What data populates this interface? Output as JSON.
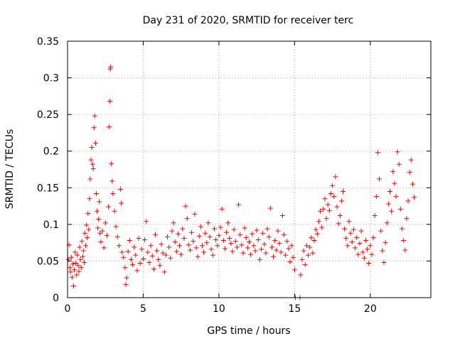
{
  "chart_data": {
    "type": "scatter",
    "title": "Day 231 of 2020, SRMTID for receiver terc",
    "xlabel": "GPS time / hours",
    "ylabel": "SRMTID / TECUs",
    "xlim": [
      0,
      24
    ],
    "ylim": [
      0,
      0.35
    ],
    "grid": true,
    "marker": "+",
    "colors": {
      "points": "#ff0000",
      "grid": "#a0a0a0",
      "frame": "#000000"
    },
    "x_ticks": [
      {
        "value": 0,
        "label": "0"
      },
      {
        "value": 5,
        "label": "5"
      },
      {
        "value": 10,
        "label": "10"
      },
      {
        "value": 15,
        "label": "15"
      },
      {
        "value": 20,
        "label": "20"
      }
    ],
    "y_ticks": [
      {
        "value": 0,
        "label": "0"
      },
      {
        "value": 0.05,
        "label": "0.05"
      },
      {
        "value": 0.1,
        "label": "0.1"
      },
      {
        "value": 0.15,
        "label": "0.15"
      },
      {
        "value": 0.2,
        "label": "0.2"
      },
      {
        "value": 0.25,
        "label": "0.25"
      },
      {
        "value": 0.3,
        "label": "0.3"
      },
      {
        "value": 0.35,
        "label": "0.35"
      }
    ],
    "series": [
      {
        "name": "SRMTID",
        "points": [
          [
            0.05,
            0.052
          ],
          [
            0.1,
            0.072
          ],
          [
            0.15,
            0.041
          ],
          [
            0.2,
            0.035
          ],
          [
            0.25,
            0.055
          ],
          [
            0.3,
            0.028
          ],
          [
            0.35,
            0.046
          ],
          [
            0.4,
            0.016
          ],
          [
            0.45,
            0.038
          ],
          [
            0.5,
            0.062
          ],
          [
            0.55,
            0.047
          ],
          [
            0.6,
            0.031
          ],
          [
            0.65,
            0.058
          ],
          [
            0.7,
            0.044
          ],
          [
            0.75,
            0.036
          ],
          [
            0.8,
            0.069
          ],
          [
            0.85,
            0.052
          ],
          [
            0.9,
            0.041
          ],
          [
            0.95,
            0.077
          ],
          [
            1.0,
            0.056
          ],
          [
            1.05,
            0.064
          ],
          [
            1.1,
            0.048
          ],
          [
            1.15,
            0.088
          ],
          [
            1.2,
            0.071
          ],
          [
            1.25,
            0.099
          ],
          [
            1.3,
            0.082
          ],
          [
            1.35,
            0.115
          ],
          [
            1.4,
            0.093
          ],
          [
            1.45,
            0.135
          ],
          [
            1.5,
            0.162
          ],
          [
            1.55,
            0.188
          ],
          [
            1.6,
            0.205
          ],
          [
            1.65,
            0.182
          ],
          [
            1.7,
            0.176
          ],
          [
            1.75,
            0.232
          ],
          [
            1.8,
            0.248
          ],
          [
            1.85,
            0.211
          ],
          [
            1.9,
            0.142
          ],
          [
            1.95,
            0.118
          ],
          [
            2.0,
            0.095
          ],
          [
            2.05,
            0.107
          ],
          [
            2.1,
            0.131
          ],
          [
            2.15,
            0.088
          ],
          [
            2.2,
            0.076
          ],
          [
            2.3,
            0.091
          ],
          [
            2.4,
            0.068
          ],
          [
            2.5,
            0.102
          ],
          [
            2.6,
            0.085
          ],
          [
            2.7,
            0.124
          ],
          [
            2.75,
            0.233
          ],
          [
            2.8,
            0.268
          ],
          [
            2.82,
            0.312
          ],
          [
            2.85,
            0.315
          ],
          [
            2.9,
            0.183
          ],
          [
            2.95,
            0.159
          ],
          [
            3.0,
            0.142
          ],
          [
            3.1,
            0.118
          ],
          [
            3.2,
            0.097
          ],
          [
            3.3,
            0.083
          ],
          [
            3.4,
            0.071
          ],
          [
            3.5,
            0.148
          ],
          [
            3.55,
            0.129
          ],
          [
            3.6,
            0.062
          ],
          [
            3.7,
            0.055
          ],
          [
            3.8,
            0.041
          ],
          [
            3.85,
            0.018
          ],
          [
            3.9,
            0.027
          ],
          [
            4.0,
            0.063
          ],
          [
            4.1,
            0.078
          ],
          [
            4.2,
            0.052
          ],
          [
            4.3,
            0.045
          ],
          [
            4.4,
            0.069
          ],
          [
            4.5,
            0.058
          ],
          [
            4.6,
            0.037
          ],
          [
            4.7,
            0.081
          ],
          [
            4.8,
            0.047
          ],
          [
            4.9,
            0.066
          ],
          [
            5.0,
            0.053
          ],
          [
            5.1,
            0.079
          ],
          [
            5.2,
            0.104
          ],
          [
            5.3,
            0.062
          ],
          [
            5.4,
            0.048
          ],
          [
            5.5,
            0.071
          ],
          [
            5.6,
            0.057
          ],
          [
            5.7,
            0.039
          ],
          [
            5.8,
            0.086
          ],
          [
            5.9,
            0.064
          ],
          [
            6.0,
            0.052
          ],
          [
            6.1,
            0.044
          ],
          [
            6.2,
            0.073
          ],
          [
            6.3,
            0.061
          ],
          [
            6.4,
            0.035
          ],
          [
            6.5,
            0.058
          ],
          [
            6.6,
            0.083
          ],
          [
            6.7,
            0.069
          ],
          [
            6.8,
            0.054
          ],
          [
            6.9,
            0.091
          ],
          [
            7.0,
            0.102
          ],
          [
            7.1,
            0.076
          ],
          [
            7.2,
            0.063
          ],
          [
            7.3,
            0.087
          ],
          [
            7.4,
            0.071
          ],
          [
            7.5,
            0.059
          ],
          [
            7.6,
            0.094
          ],
          [
            7.7,
            0.081
          ],
          [
            7.8,
            0.125
          ],
          [
            7.9,
            0.108
          ],
          [
            8.0,
            0.072
          ],
          [
            8.1,
            0.065
          ],
          [
            8.2,
            0.089
          ],
          [
            8.3,
            0.077
          ],
          [
            8.4,
            0.114
          ],
          [
            8.5,
            0.068
          ],
          [
            8.6,
            0.056
          ],
          [
            8.7,
            0.084
          ],
          [
            8.8,
            0.097
          ],
          [
            8.9,
            0.071
          ],
          [
            9.0,
            0.062
          ],
          [
            9.1,
            0.088
          ],
          [
            9.2,
            0.075
          ],
          [
            9.3,
            0.102
          ],
          [
            9.4,
            0.083
          ],
          [
            9.5,
            0.066
          ],
          [
            9.6,
            0.058
          ],
          [
            9.7,
            0.094
          ],
          [
            9.8,
            0.079
          ],
          [
            9.9,
            0.071
          ],
          [
            10.0,
            0.085
          ],
          [
            10.1,
            0.096
          ],
          [
            10.2,
            0.121
          ],
          [
            10.3,
            0.078
          ],
          [
            10.4,
            0.067
          ],
          [
            10.5,
            0.089
          ],
          [
            10.6,
            0.102
          ],
          [
            10.7,
            0.081
          ],
          [
            10.8,
            0.074
          ],
          [
            10.9,
            0.063
          ],
          [
            11.0,
            0.093
          ],
          [
            11.1,
            0.077
          ],
          [
            11.2,
            0.069
          ],
          [
            11.3,
            0.127
          ],
          [
            11.4,
            0.086
          ],
          [
            11.5,
            0.072
          ],
          [
            11.6,
            0.061
          ],
          [
            11.7,
            0.095
          ],
          [
            11.8,
            0.082
          ],
          [
            11.9,
            0.068
          ],
          [
            12.0,
            0.076
          ],
          [
            12.1,
            0.059
          ],
          [
            12.2,
            0.087
          ],
          [
            12.3,
            0.071
          ],
          [
            12.4,
            0.064
          ],
          [
            12.5,
            0.092
          ],
          [
            12.6,
            0.079
          ],
          [
            12.7,
            0.052
          ],
          [
            12.8,
            0.066
          ],
          [
            12.9,
            0.088
          ],
          [
            13.0,
            0.073
          ],
          [
            13.1,
            0.061
          ],
          [
            13.2,
            0.094
          ],
          [
            13.3,
            0.083
          ],
          [
            13.4,
            0.122
          ],
          [
            13.5,
            0.069
          ],
          [
            13.6,
            0.056
          ],
          [
            13.7,
            0.078
          ],
          [
            13.8,
            0.065
          ],
          [
            13.9,
            0.091
          ],
          [
            14.0,
            0.074
          ],
          [
            14.1,
            0.062
          ],
          [
            14.2,
            0.112
          ],
          [
            14.3,
            0.086
          ],
          [
            14.4,
            0.058
          ],
          [
            14.5,
            0.077
          ],
          [
            14.6,
            0.067
          ],
          [
            14.7,
            0.049
          ],
          [
            14.8,
            0.071
          ],
          [
            14.9,
            0.055
          ],
          [
            15.0,
            0.038
          ],
          [
            15.05,
            0.0
          ],
          [
            15.35,
            0.0
          ],
          [
            15.4,
            0.031
          ],
          [
            15.5,
            0.052
          ],
          [
            15.6,
            0.064
          ],
          [
            15.7,
            0.045
          ],
          [
            15.8,
            0.071
          ],
          [
            15.9,
            0.058
          ],
          [
            16.0,
            0.069
          ],
          [
            16.1,
            0.082
          ],
          [
            16.2,
            0.061
          ],
          [
            16.3,
            0.078
          ],
          [
            16.4,
            0.093
          ],
          [
            16.5,
            0.087
          ],
          [
            16.6,
            0.104
          ],
          [
            16.7,
            0.118
          ],
          [
            16.8,
            0.096
          ],
          [
            16.9,
            0.121
          ],
          [
            17.0,
            0.135
          ],
          [
            17.1,
            0.108
          ],
          [
            17.2,
            0.127
          ],
          [
            17.3,
            0.119
          ],
          [
            17.4,
            0.142
          ],
          [
            17.5,
            0.153
          ],
          [
            17.6,
            0.138
          ],
          [
            17.7,
            0.165
          ],
          [
            17.8,
            0.124
          ],
          [
            17.9,
            0.101
          ],
          [
            18.0,
            0.112
          ],
          [
            18.1,
            0.132
          ],
          [
            18.2,
            0.145
          ],
          [
            18.3,
            0.094
          ],
          [
            18.4,
            0.081
          ],
          [
            18.5,
            0.071
          ],
          [
            18.6,
            0.104
          ],
          [
            18.7,
            0.088
          ],
          [
            18.8,
            0.076
          ],
          [
            18.9,
            0.093
          ],
          [
            19.0,
            0.068
          ],
          [
            19.1,
            0.082
          ],
          [
            19.2,
            0.059
          ],
          [
            19.3,
            0.074
          ],
          [
            19.4,
            0.091
          ],
          [
            19.5,
            0.062
          ],
          [
            19.6,
            0.054
          ],
          [
            19.7,
            0.078
          ],
          [
            19.8,
            0.066
          ],
          [
            19.9,
            0.047
          ],
          [
            20.0,
            0.071
          ],
          [
            20.1,
            0.059
          ],
          [
            20.2,
            0.082
          ],
          [
            20.3,
            0.112
          ],
          [
            20.4,
            0.138
          ],
          [
            20.5,
            0.198
          ],
          [
            20.6,
            0.162
          ],
          [
            20.7,
            0.091
          ],
          [
            20.8,
            0.064
          ],
          [
            20.9,
            0.048
          ],
          [
            21.0,
            0.075
          ],
          [
            21.1,
            0.102
          ],
          [
            21.2,
            0.128
          ],
          [
            21.3,
            0.145
          ],
          [
            21.4,
            0.118
          ],
          [
            21.5,
            0.172
          ],
          [
            21.6,
            0.156
          ],
          [
            21.7,
            0.138
          ],
          [
            21.8,
            0.199
          ],
          [
            21.9,
            0.182
          ],
          [
            22.0,
            0.121
          ],
          [
            22.1,
            0.094
          ],
          [
            22.2,
            0.078
          ],
          [
            22.3,
            0.065
          ],
          [
            22.4,
            0.108
          ],
          [
            22.5,
            0.132
          ],
          [
            22.6,
            0.171
          ],
          [
            22.7,
            0.188
          ],
          [
            22.8,
            0.155
          ],
          [
            22.9,
            0.137
          ]
        ]
      }
    ]
  }
}
